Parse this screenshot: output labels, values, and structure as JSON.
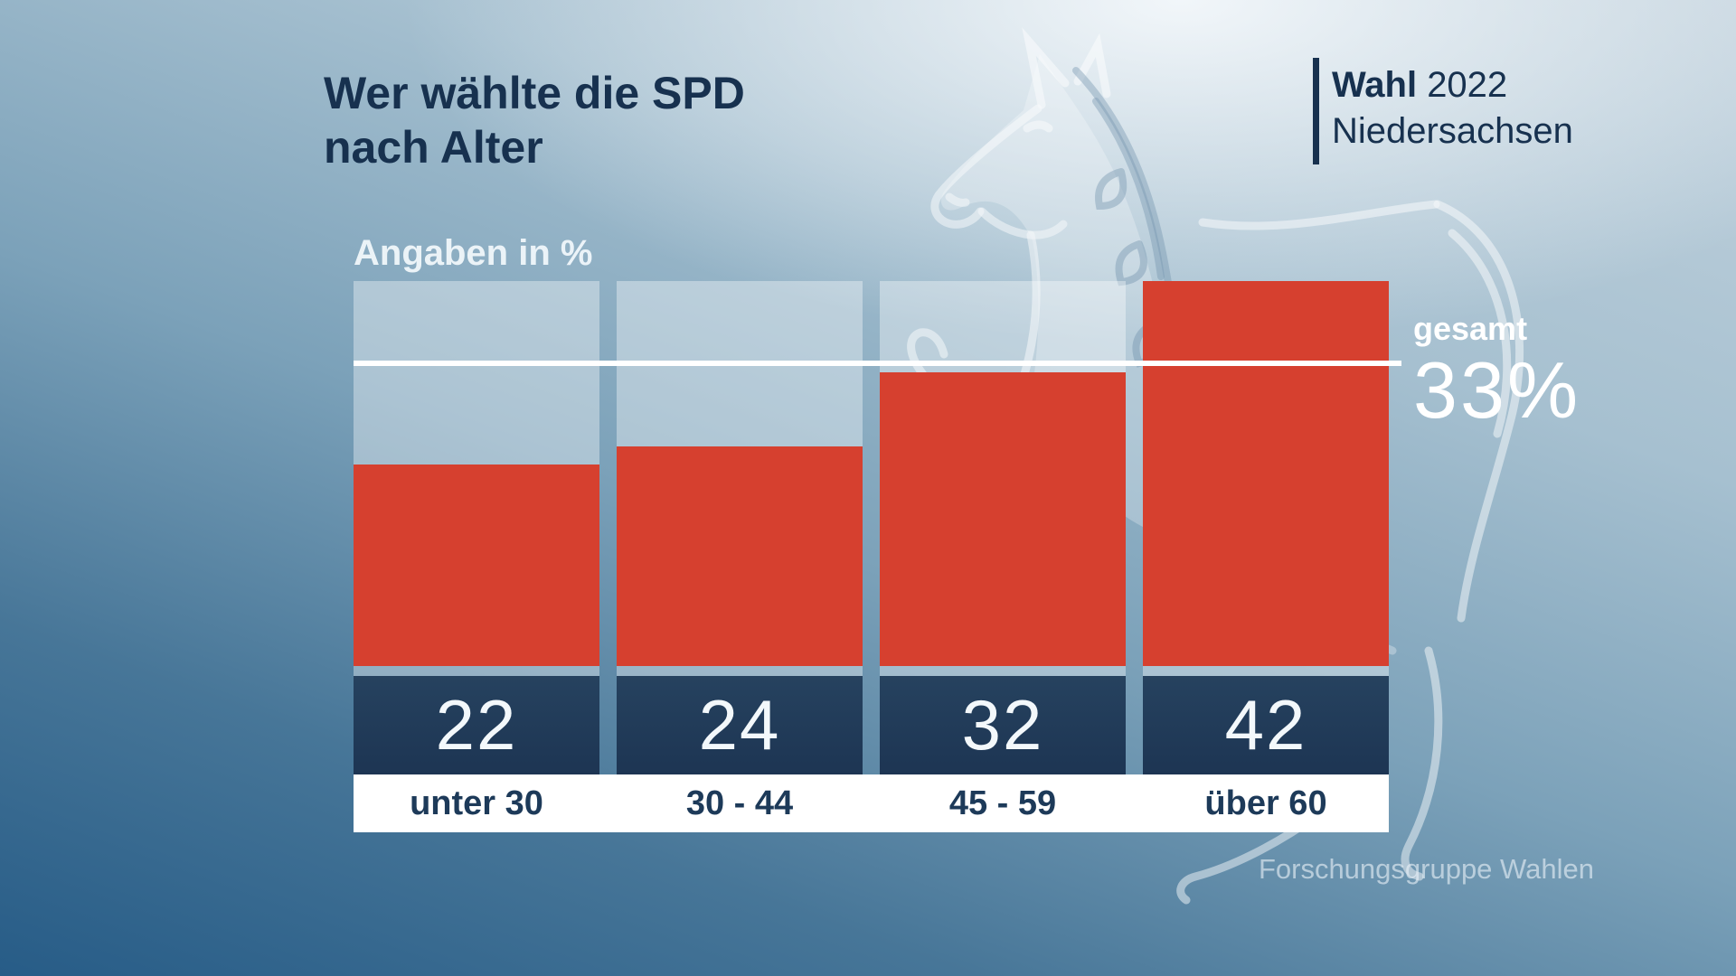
{
  "title": {
    "line1": "Wer wählte die SPD",
    "line2": "nach Alter"
  },
  "badge": {
    "label_bold": "Wahl",
    "year": "2022",
    "region": "Niedersachsen"
  },
  "chart_data": {
    "type": "bar",
    "title": "Wer wählte die SPD nach Alter",
    "units_label": "Angaben in %",
    "categories": [
      "unter 30",
      "30 - 44",
      "45 - 59",
      "über 60"
    ],
    "values": [
      22,
      24,
      32,
      42
    ],
    "ylim": [
      0,
      42
    ],
    "grid": "off",
    "legend": "none",
    "reference_line": {
      "label": "gesamt",
      "value": 33,
      "value_display": "33%"
    },
    "colors": {
      "bar": "#d6402f",
      "value_box": "#213c5b",
      "value_text": "#f3f8fb",
      "column_tint": "rgba(255,255,255,0.37)",
      "reference_line": "#ffffff",
      "label_strip": "#ffffff",
      "label_text": "#1d3a59",
      "title_text": "#17314f"
    }
  },
  "source": "Forschungsgruppe Wahlen",
  "watermark": "sachsenross-horse"
}
